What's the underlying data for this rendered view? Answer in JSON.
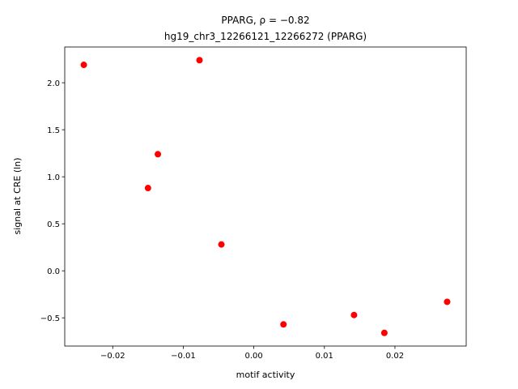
{
  "chart_data": {
    "type": "scatter",
    "title": "PPARG, ρ = −0.82",
    "subtitle": "hg19_chr3_12266121_12266272 (PPARG)",
    "x_label": "motif activity",
    "y_label": "signal at CRE (ln)",
    "color": "#ff0000",
    "x": [
      -0.0241,
      -0.0077,
      -0.0136,
      -0.015,
      -0.0046,
      0.0042,
      0.0142,
      0.0185,
      0.0274
    ],
    "values": [
      2.19,
      2.24,
      1.24,
      0.88,
      0.28,
      -0.57,
      -0.47,
      -0.66,
      -0.33
    ],
    "xlim": [
      -0.0268,
      0.0301
    ],
    "ylim": [
      -0.8,
      2.38
    ],
    "xticks": [
      {
        "value": -0.02,
        "label": "−0.02"
      },
      {
        "value": -0.01,
        "label": "−0.01"
      },
      {
        "value": 0,
        "label": "0.00"
      },
      {
        "value": 0.01,
        "label": "0.01"
      },
      {
        "value": 0.02,
        "label": "0.02"
      }
    ],
    "yticks": [
      {
        "value": -0.5,
        "label": "−0.5"
      },
      {
        "value": 0,
        "label": "0.0"
      },
      0.5,
      {
        "value": 1,
        "label": "1.0"
      },
      1.5,
      {
        "value": 2,
        "label": "2.0"
      }
    ]
  }
}
